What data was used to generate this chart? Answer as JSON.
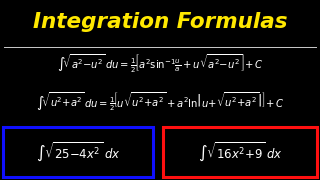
{
  "title": "Integration Formulas",
  "title_color": "#FFE800",
  "bg_color": "#000000",
  "text_color": "#FFFFFF",
  "formula1": "$\\int\\!\\sqrt{a^2{-}u^2}\\,du = \\frac{1}{2}\\!\\left[a^2\\sin^{-1}\\!\\frac{u}{a} + u\\sqrt{a^2{-}u^2}\\right]\\!+C$",
  "formula2": "$\\int\\!\\sqrt{u^2{+}a^2}\\,du = \\frac{1}{2}\\!\\left[u\\sqrt{u^2{+}a^2} + a^2\\ln\\!\\left|u{+}\\sqrt{u^2{+}a^2}\\right|\\right]\\!+C$",
  "box1_text": "$\\int\\sqrt{25{-}4x^2}\\; dx$",
  "box2_text": "$\\int\\sqrt{16x^2{+}9}\\; dx$",
  "box1_color": "#1010FF",
  "box2_color": "#FF1010",
  "divider_color": "#CCCCCC",
  "font_size_title": 15.5,
  "font_size_formula": 7.2,
  "font_size_box": 8.5
}
